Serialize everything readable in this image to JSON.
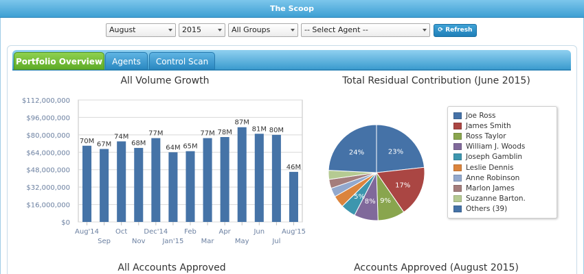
{
  "window": {
    "title": "The Scoop"
  },
  "filters": {
    "month": "August",
    "year": "2015",
    "group": "All Groups",
    "agent": "-- Select Agent --",
    "refresh_label": "Refresh"
  },
  "tabs": [
    {
      "label": "Portfolio Overview",
      "active": true
    },
    {
      "label": "Agents",
      "active": false
    },
    {
      "label": "Control Scan",
      "active": false
    }
  ],
  "charts": {
    "volume_title": "All Volume Growth",
    "residual_title": "Total Residual Contribution (June 2015)",
    "approved_title": "All Accounts Approved",
    "approved_month_title": "Accounts Approved (August 2015)"
  },
  "chart_data": [
    {
      "type": "bar",
      "title": "All Volume Growth",
      "categories": [
        "Aug'14",
        "Sep",
        "Oct",
        "Nov",
        "Dec'14",
        "Jan'15",
        "Feb",
        "Mar",
        "Apr",
        "May",
        "Jun",
        "Jul",
        "Aug'15"
      ],
      "values": [
        70000000,
        67000000,
        74000000,
        68000000,
        77000000,
        64000000,
        65000000,
        77000000,
        78000000,
        87000000,
        81000000,
        80000000,
        46000000
      ],
      "data_labels": [
        "70M",
        "67M",
        "74M",
        "68M",
        "77M",
        "64M",
        "65M",
        "77M",
        "78M",
        "87M",
        "81M",
        "80M",
        "46M"
      ],
      "y_ticks": [
        "$0",
        "$16,000,000",
        "$32,000,000",
        "$48,000,000",
        "$64,000,000",
        "$80,000,000",
        "$96,000,000",
        "$112,000,000"
      ],
      "ylim": [
        0,
        112000000
      ],
      "grid": true,
      "color": "#4573a7"
    },
    {
      "type": "pie",
      "title": "Total Residual Contribution (June 2015)",
      "slices": [
        {
          "name": "Joe Ross",
          "value": 23,
          "label": "23%",
          "color": "#4572a7"
        },
        {
          "name": "James Smith",
          "value": 17,
          "label": "17%",
          "color": "#aa4643"
        },
        {
          "name": "Ross Taylor",
          "value": 9,
          "label": "9%",
          "color": "#89a54e"
        },
        {
          "name": "William J. Woods",
          "value": 8,
          "label": "8%",
          "color": "#80699b"
        },
        {
          "name": "Joseph Gamblin",
          "value": 5,
          "label": "5%",
          "color": "#3d96ae"
        },
        {
          "name": "Leslie Dennis",
          "value": 4,
          "label": "",
          "color": "#db843d"
        },
        {
          "name": "Anne Robinson",
          "value": 3,
          "label": "",
          "color": "#92a8cd"
        },
        {
          "name": "Marlon James",
          "value": 3,
          "label": "",
          "color": "#a47d7c"
        },
        {
          "name": "Suzanne Barton.",
          "value": 3,
          "label": "",
          "color": "#b5ca92"
        },
        {
          "name": "Others (39)",
          "value": 24,
          "label": "24%",
          "color": "#4572a7"
        }
      ],
      "legend": "right"
    }
  ]
}
